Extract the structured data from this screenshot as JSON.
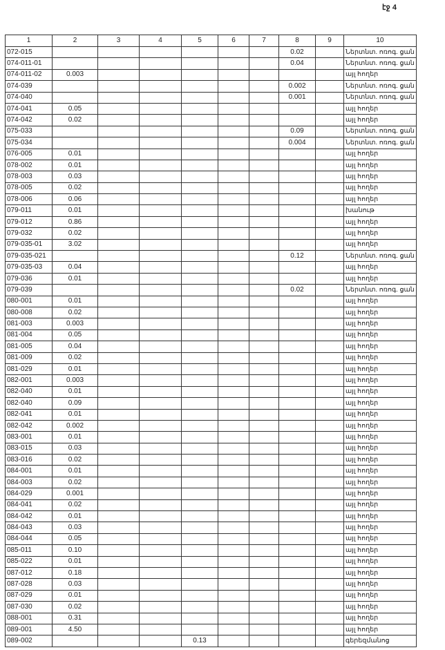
{
  "page_label": "էջ 4",
  "columns": [
    "1",
    "2",
    "3",
    "4",
    "5",
    "6",
    "7",
    "8",
    "9",
    "10"
  ],
  "rows": [
    [
      "072-015",
      "",
      "",
      "",
      "",
      "",
      "",
      "0.02",
      "",
      "Ներտնտ. ոռոգ. ցան"
    ],
    [
      "074-011-01",
      "",
      "",
      "",
      "",
      "",
      "",
      "0.04",
      "",
      "Ներտնտ. ոռոգ. ցան"
    ],
    [
      "074-011-02",
      "0.003",
      "",
      "",
      "",
      "",
      "",
      "",
      "",
      "այլ հողեր"
    ],
    [
      "074-039",
      "",
      "",
      "",
      "",
      "",
      "",
      "0.002",
      "",
      "Ներտնտ. ոռոգ. ցան"
    ],
    [
      "074-040",
      "",
      "",
      "",
      "",
      "",
      "",
      "0.001",
      "",
      "Ներտնտ. ոռոգ. ցան"
    ],
    [
      "074-041",
      "0.05",
      "",
      "",
      "",
      "",
      "",
      "",
      "",
      "այլ հողեր"
    ],
    [
      "074-042",
      "0.02",
      "",
      "",
      "",
      "",
      "",
      "",
      "",
      "այլ հողեր"
    ],
    [
      "075-033",
      "",
      "",
      "",
      "",
      "",
      "",
      "0.09",
      "",
      "Ներտնտ. ոռոգ. ցան"
    ],
    [
      "075-034",
      "",
      "",
      "",
      "",
      "",
      "",
      "0.004",
      "",
      "Ներտնտ. ոռոգ. ցան"
    ],
    [
      "076-005",
      "0.01",
      "",
      "",
      "",
      "",
      "",
      "",
      "",
      "այլ հողեր"
    ],
    [
      "078-002",
      "0.01",
      "",
      "",
      "",
      "",
      "",
      "",
      "",
      "այլ հողեր"
    ],
    [
      "078-003",
      "0.03",
      "",
      "",
      "",
      "",
      "",
      "",
      "",
      "այլ հողեր"
    ],
    [
      "078-005",
      "0.02",
      "",
      "",
      "",
      "",
      "",
      "",
      "",
      "այլ հողեր"
    ],
    [
      "078-006",
      "0.06",
      "",
      "",
      "",
      "",
      "",
      "",
      "",
      "այլ հողեր"
    ],
    [
      "079-011",
      "0.01",
      "",
      "",
      "",
      "",
      "",
      "",
      "",
      "խանութ"
    ],
    [
      "079-012",
      "0.86",
      "",
      "",
      "",
      "",
      "",
      "",
      "",
      "այլ հողեր"
    ],
    [
      "079-032",
      "0.02",
      "",
      "",
      "",
      "",
      "",
      "",
      "",
      "այլ հողեր"
    ],
    [
      "079-035-01",
      "3.02",
      "",
      "",
      "",
      "",
      "",
      "",
      "",
      "այլ հողեր"
    ],
    [
      "079-035-021",
      "",
      "",
      "",
      "",
      "",
      "",
      "0.12",
      "",
      "Ներտնտ. ոռոգ. ցան"
    ],
    [
      "079-035-03",
      "0.04",
      "",
      "",
      "",
      "",
      "",
      "",
      "",
      "այլ հողեր"
    ],
    [
      "079-036",
      "0.01",
      "",
      "",
      "",
      "",
      "",
      "",
      "",
      "այլ հողեր"
    ],
    [
      "079-039",
      "",
      "",
      "",
      "",
      "",
      "",
      "0.02",
      "",
      "Ներտնտ. ոռոգ. ցան"
    ],
    [
      "080-001",
      "0.01",
      "",
      "",
      "",
      "",
      "",
      "",
      "",
      "այլ հողեր"
    ],
    [
      "080-008",
      "0.02",
      "",
      "",
      "",
      "",
      "",
      "",
      "",
      "այլ հողեր"
    ],
    [
      "081-003",
      "0.003",
      "",
      "",
      "",
      "",
      "",
      "",
      "",
      "այլ հողեր"
    ],
    [
      "081-004",
      "0.05",
      "",
      "",
      "",
      "",
      "",
      "",
      "",
      "այլ հողեր"
    ],
    [
      "081-005",
      "0.04",
      "",
      "",
      "",
      "",
      "",
      "",
      "",
      "այլ հողեր"
    ],
    [
      "081-009",
      "0.02",
      "",
      "",
      "",
      "",
      "",
      "",
      "",
      "այլ հողեր"
    ],
    [
      "081-029",
      "0.01",
      "",
      "",
      "",
      "",
      "",
      "",
      "",
      "այլ հողեր"
    ],
    [
      "082-001",
      "0.003",
      "",
      "",
      "",
      "",
      "",
      "",
      "",
      "այլ հողեր"
    ],
    [
      "082-040",
      "0.01",
      "",
      "",
      "",
      "",
      "",
      "",
      "",
      "այլ հողեր"
    ],
    [
      "082-040",
      "0.09",
      "",
      "",
      "",
      "",
      "",
      "",
      "",
      "այլ հողեր"
    ],
    [
      "082-041",
      "0.01",
      "",
      "",
      "",
      "",
      "",
      "",
      "",
      "այլ հողեր"
    ],
    [
      "082-042",
      "0.002",
      "",
      "",
      "",
      "",
      "",
      "",
      "",
      "այլ հողեր"
    ],
    [
      "083-001",
      "0.01",
      "",
      "",
      "",
      "",
      "",
      "",
      "",
      "այլ հողեր"
    ],
    [
      "083-015",
      "0.03",
      "",
      "",
      "",
      "",
      "",
      "",
      "",
      "այլ հողեր"
    ],
    [
      "083-016",
      "0.02",
      "",
      "",
      "",
      "",
      "",
      "",
      "",
      "այլ հողեր"
    ],
    [
      "084-001",
      "0.01",
      "",
      "",
      "",
      "",
      "",
      "",
      "",
      "այլ հողեր"
    ],
    [
      "084-003",
      "0.02",
      "",
      "",
      "",
      "",
      "",
      "",
      "",
      "այլ հողեր"
    ],
    [
      "084-029",
      "0.001",
      "",
      "",
      "",
      "",
      "",
      "",
      "",
      "այլ հողեր"
    ],
    [
      "084-041",
      "0.02",
      "",
      "",
      "",
      "",
      "",
      "",
      "",
      "այլ հողեր"
    ],
    [
      "084-042",
      "0.01",
      "",
      "",
      "",
      "",
      "",
      "",
      "",
      "այլ հողեր"
    ],
    [
      "084-043",
      "0.03",
      "",
      "",
      "",
      "",
      "",
      "",
      "",
      "այլ հողեր"
    ],
    [
      "084-044",
      "0.05",
      "",
      "",
      "",
      "",
      "",
      "",
      "",
      "այլ հողեր"
    ],
    [
      "085-011",
      "0.10",
      "",
      "",
      "",
      "",
      "",
      "",
      "",
      "այլ հողեր"
    ],
    [
      "085-022",
      "0.01",
      "",
      "",
      "",
      "",
      "",
      "",
      "",
      "այլ հողեր"
    ],
    [
      "087-012",
      "0.18",
      "",
      "",
      "",
      "",
      "",
      "",
      "",
      "այլ հողեր"
    ],
    [
      "087-028",
      "0.03",
      "",
      "",
      "",
      "",
      "",
      "",
      "",
      "այլ հողեր"
    ],
    [
      "087-029",
      "0.01",
      "",
      "",
      "",
      "",
      "",
      "",
      "",
      "այլ հողեր"
    ],
    [
      "087-030",
      "0.02",
      "",
      "",
      "",
      "",
      "",
      "",
      "",
      "այլ հողեր"
    ],
    [
      "088-001",
      "0.31",
      "",
      "",
      "",
      "",
      "",
      "",
      "",
      "այլ հողեր"
    ],
    [
      "089-001",
      "4.50",
      "",
      "",
      "",
      "",
      "",
      "",
      "",
      "այլ հողեր"
    ],
    [
      "089-002",
      "",
      "",
      "",
      "0.13",
      "",
      "",
      "",
      "",
      "գերեզմանոց"
    ]
  ]
}
